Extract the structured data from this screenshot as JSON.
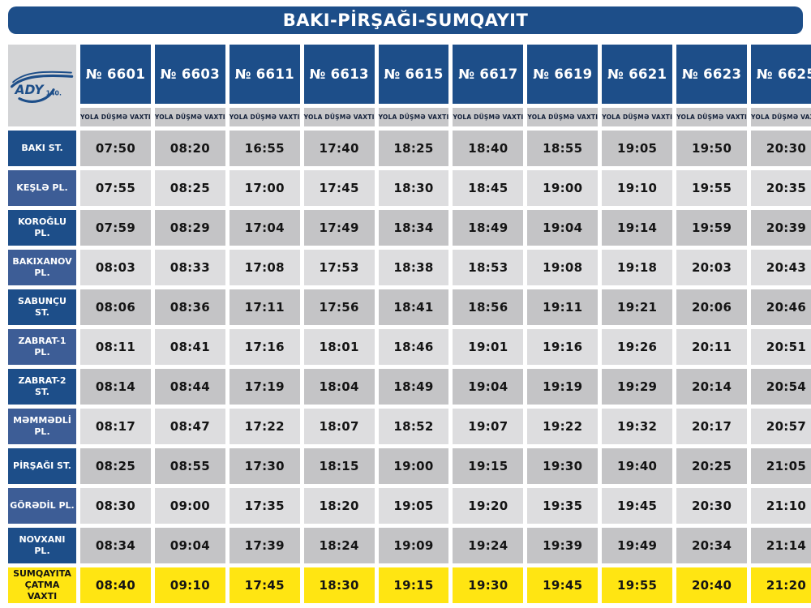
{
  "title": "BAKI-PİRŞAĞI-SUMQAYIT",
  "logo": {
    "brand": "ADY",
    "anniversary": "140."
  },
  "departure_label": "YOLA DÜŞMƏ VAXTI",
  "trains": [
    "№ 6601",
    "№ 6603",
    "№ 6611",
    "№ 6613",
    "№ 6615",
    "№ 6617",
    "№ 6619",
    "№ 6621",
    "№ 6623",
    "№ 6625"
  ],
  "rows": [
    {
      "station": "BAKI ST.",
      "times": [
        "07:50",
        "08:20",
        "16:55",
        "17:40",
        "18:25",
        "18:40",
        "18:55",
        "19:05",
        "19:50",
        "20:30"
      ]
    },
    {
      "station": "KEŞLƏ PL.",
      "times": [
        "07:55",
        "08:25",
        "17:00",
        "17:45",
        "18:30",
        "18:45",
        "19:00",
        "19:10",
        "19:55",
        "20:35"
      ]
    },
    {
      "station": "KOROĞLU PL.",
      "times": [
        "07:59",
        "08:29",
        "17:04",
        "17:49",
        "18:34",
        "18:49",
        "19:04",
        "19:14",
        "19:59",
        "20:39"
      ]
    },
    {
      "station": "BAKIXANOV PL.",
      "times": [
        "08:03",
        "08:33",
        "17:08",
        "17:53",
        "18:38",
        "18:53",
        "19:08",
        "19:18",
        "20:03",
        "20:43"
      ]
    },
    {
      "station": "SABUNÇU ST.",
      "times": [
        "08:06",
        "08:36",
        "17:11",
        "17:56",
        "18:41",
        "18:56",
        "19:11",
        "19:21",
        "20:06",
        "20:46"
      ]
    },
    {
      "station": "ZABRAT-1 PL.",
      "times": [
        "08:11",
        "08:41",
        "17:16",
        "18:01",
        "18:46",
        "19:01",
        "19:16",
        "19:26",
        "20:11",
        "20:51"
      ]
    },
    {
      "station": "ZABRAT-2 ST.",
      "times": [
        "08:14",
        "08:44",
        "17:19",
        "18:04",
        "18:49",
        "19:04",
        "19:19",
        "19:29",
        "20:14",
        "20:54"
      ]
    },
    {
      "station": "MƏMMƏDLİ PL.",
      "times": [
        "08:17",
        "08:47",
        "17:22",
        "18:07",
        "18:52",
        "19:07",
        "19:22",
        "19:32",
        "20:17",
        "20:57"
      ]
    },
    {
      "station": "PİRŞAĞI ST.",
      "times": [
        "08:25",
        "08:55",
        "17:30",
        "18:15",
        "19:00",
        "19:15",
        "19:30",
        "19:40",
        "20:25",
        "21:05"
      ]
    },
    {
      "station": "GÖRƏDİL PL.",
      "times": [
        "08:30",
        "09:00",
        "17:35",
        "18:20",
        "19:05",
        "19:20",
        "19:35",
        "19:45",
        "20:30",
        "21:10"
      ]
    },
    {
      "station": "NOVXANI PL.",
      "times": [
        "08:34",
        "09:04",
        "17:39",
        "18:24",
        "19:09",
        "19:24",
        "19:39",
        "19:49",
        "20:34",
        "21:14"
      ]
    },
    {
      "station": "SUMQAYITA ÇATMA VAXTI",
      "highlight": true,
      "times": [
        "08:40",
        "09:10",
        "17:45",
        "18:30",
        "19:15",
        "19:30",
        "19:45",
        "19:55",
        "20:40",
        "21:20"
      ]
    }
  ],
  "colors": {
    "header_blue": "#1d4e89",
    "station_alt_blue": "#3d5d96",
    "cell_gray_dark": "#c4c4c6",
    "cell_gray_light": "#dddddf",
    "strip_gray": "#c7c7c9",
    "logo_gray": "#d3d4d6",
    "highlight_yellow": "#ffe512",
    "text_dark": "#141414"
  }
}
